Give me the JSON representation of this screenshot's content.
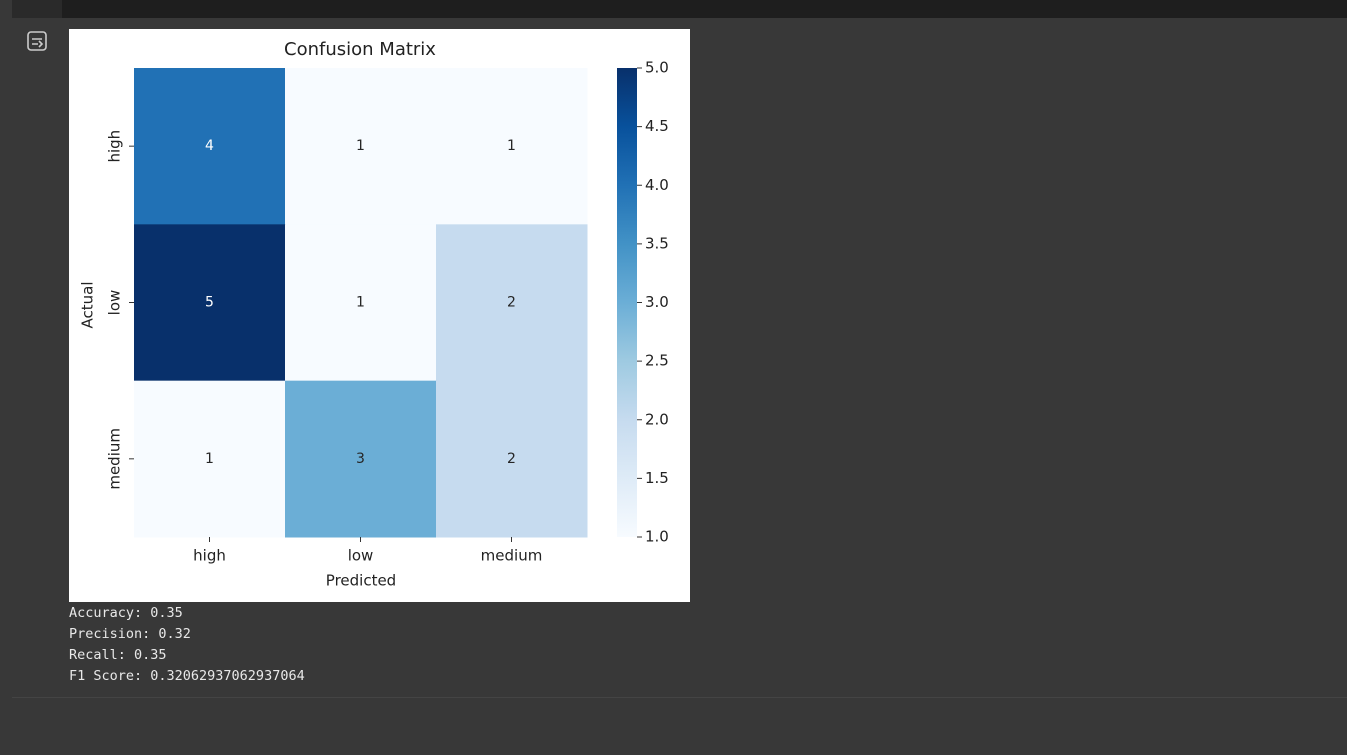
{
  "chart_data": {
    "type": "heatmap",
    "title": "Confusion Matrix",
    "x_label": "Predicted",
    "y_label": "Actual",
    "x_categories": [
      "high",
      "low",
      "medium"
    ],
    "y_categories": [
      "high",
      "low",
      "medium"
    ],
    "values": [
      [
        4,
        1,
        1
      ],
      [
        5,
        1,
        2
      ],
      [
        1,
        3,
        2
      ]
    ],
    "colormap": [
      "#f7fbff",
      "#deebf7",
      "#c6dbef",
      "#9ecae1",
      "#6baed6",
      "#4292c6",
      "#2171b5",
      "#08519c",
      "#08306b"
    ],
    "clim": [
      1,
      5
    ],
    "cticks": [
      {
        "value": 1,
        "label": "1.0"
      },
      1.5,
      {
        "value": 2,
        "label": "2.0"
      },
      2.5,
      {
        "value": 3,
        "label": "3.0"
      },
      3.5,
      {
        "value": 4,
        "label": "4.0"
      },
      4.5,
      {
        "value": 5,
        "label": "5.0"
      }
    ]
  },
  "output": [
    "Accuracy: 0.35",
    "Precision: 0.32",
    "Recall: 0.35",
    "F1 Score: 0.32062937062937064"
  ]
}
